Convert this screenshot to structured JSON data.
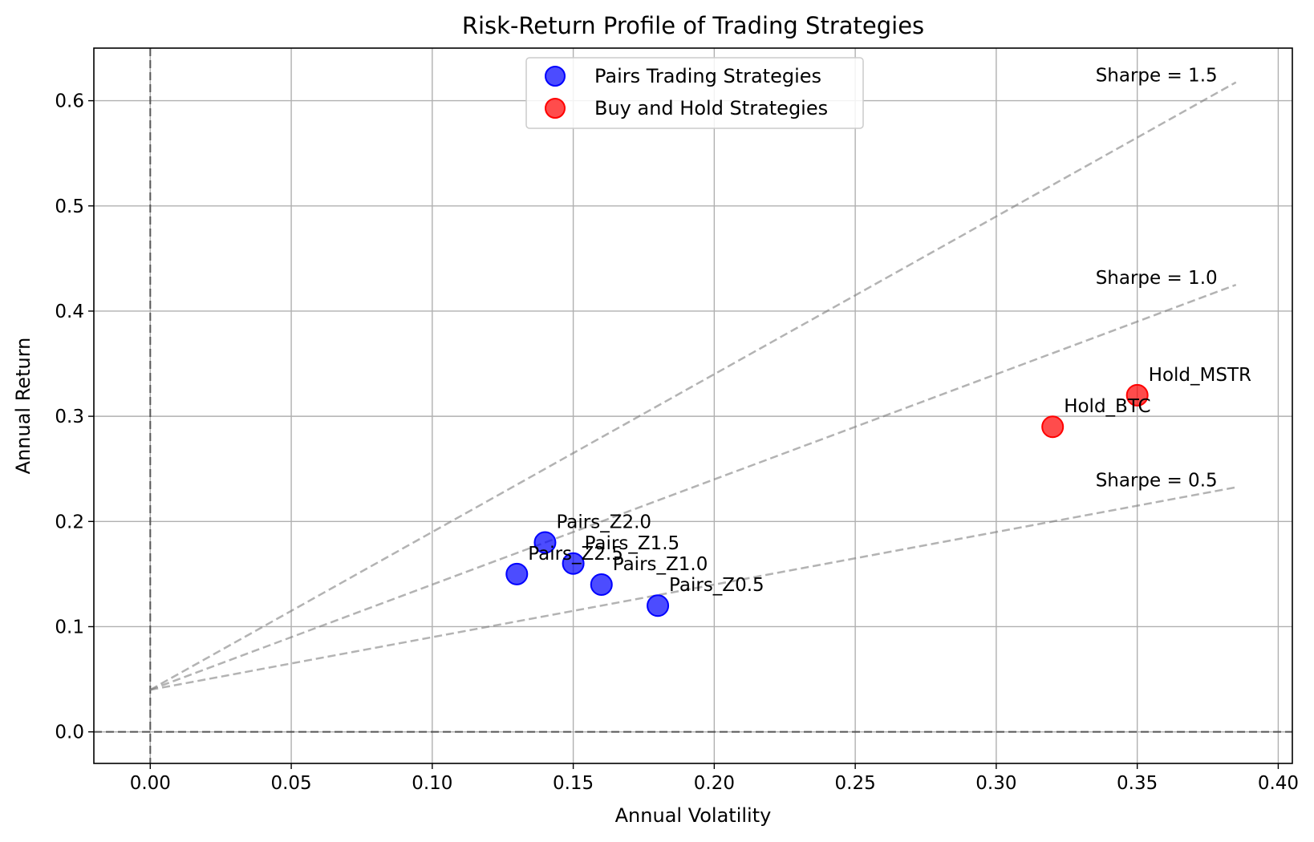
{
  "chart_data": {
    "type": "scatter",
    "title": "Risk-Return Profile of Trading Strategies",
    "xlabel": "Annual Volatility",
    "ylabel": "Annual Return",
    "xlim": [
      -0.02,
      0.405
    ],
    "ylim": [
      -0.03,
      0.65
    ],
    "xticks": [
      "0.00",
      "0.05",
      "0.10",
      "0.15",
      "0.20",
      "0.25",
      "0.30",
      "0.35",
      "0.40"
    ],
    "yticks": [
      "0.0",
      "0.1",
      "0.2",
      "0.3",
      "0.4",
      "0.5",
      "0.6"
    ],
    "grid": true,
    "legend_position": "upper center",
    "series": [
      {
        "name": "Pairs Trading Strategies",
        "color": "#0000ff",
        "points": [
          {
            "label": "Pairs_Z0.5",
            "x": 0.18,
            "y": 0.12
          },
          {
            "label": "Pairs_Z1.0",
            "x": 0.16,
            "y": 0.14
          },
          {
            "label": "Pairs_Z1.5",
            "x": 0.15,
            "y": 0.16
          },
          {
            "label": "Pairs_Z2.0",
            "x": 0.14,
            "y": 0.18
          },
          {
            "label": "Pairs_Z2.5",
            "x": 0.13,
            "y": 0.15
          }
        ]
      },
      {
        "name": "Buy and Hold Strategies",
        "color": "#ff0000",
        "points": [
          {
            "label": "Hold_BTC",
            "x": 0.32,
            "y": 0.29
          },
          {
            "label": "Hold_MSTR",
            "x": 0.35,
            "y": 0.32
          }
        ]
      }
    ],
    "reference_lines": {
      "risk_free_rate": 0.04,
      "x_end": 0.385,
      "sharpe_lines": [
        {
          "sharpe": 0.5,
          "label": "Sharpe = 0.5"
        },
        {
          "sharpe": 1.0,
          "label": "Sharpe = 1.0"
        },
        {
          "sharpe": 1.5,
          "label": "Sharpe = 1.5"
        }
      ],
      "color": "#808080"
    },
    "zero_lines": {
      "x": 0,
      "y": 0
    }
  }
}
